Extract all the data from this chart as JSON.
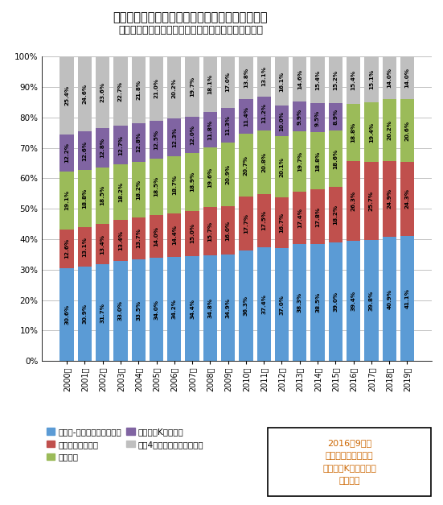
{
  "title_line1": "コンビニ業界全体に占める上位チェーンの売上高",
  "title_line2": "（ローソン統合報告書より、業界全体に占める比率）",
  "years": [
    "2000年",
    "2001年",
    "2002年",
    "2003年",
    "2004年",
    "2005年",
    "2006年",
    "2007年",
    "2008年",
    "2009年",
    "2010年",
    "2011年",
    "2012年",
    "2013年",
    "2014年",
    "2015年",
    "2016年",
    "2017年",
    "2018年",
    "2019年"
  ],
  "seven_eleven": [
    30.6,
    30.9,
    31.7,
    33.0,
    33.5,
    34.0,
    34.2,
    34.4,
    34.8,
    34.9,
    36.3,
    37.4,
    37.0,
    38.3,
    38.5,
    39.0,
    39.4,
    39.8,
    40.9,
    41.1
  ],
  "family_mart": [
    12.6,
    13.1,
    13.4,
    13.4,
    13.7,
    14.0,
    14.4,
    15.0,
    15.7,
    16.0,
    17.7,
    17.5,
    16.7,
    17.4,
    17.8,
    18.2,
    26.3,
    25.7,
    24.9,
    24.3
  ],
  "lawson": [
    19.1,
    18.8,
    18.5,
    18.2,
    18.2,
    18.5,
    18.7,
    18.9,
    19.6,
    20.9,
    20.7,
    20.8,
    20.1,
    19.7,
    18.8,
    18.6,
    18.8,
    19.4,
    20.2,
    20.6
  ],
  "circle_k": [
    12.2,
    12.6,
    12.8,
    12.7,
    12.8,
    12.5,
    12.3,
    12.0,
    11.8,
    11.3,
    11.4,
    11.2,
    10.0,
    9.9,
    9.5,
    8.9,
    0.0,
    0.0,
    0.0,
    0.0
  ],
  "others": [
    25.4,
    24.6,
    23.6,
    22.7,
    21.8,
    21.0,
    20.2,
    19.7,
    18.1,
    17.0,
    13.8,
    13.1,
    16.1,
    14.6,
    15.4,
    15.2,
    15.4,
    15.1,
    14.0,
    14.0
  ],
  "color_seven": "#5b9bd5",
  "color_family": "#c0504d",
  "color_lawson": "#9bbb59",
  "color_circle": "#8064a2",
  "color_others": "#bfbfbf",
  "label_seven": "セブン-イレブン・ジャパン",
  "label_family": "ファミリーマート",
  "label_lawson": "ローソン",
  "label_circle": "サークルKサンクス",
  "label_others": "上位4社以外のコンビニ合計",
  "note_line1": "2016年9月に",
  "note_line2": "ファミリーマートと",
  "note_line3": "サークルKサンクスは",
  "note_line4": "経営統合",
  "note_color": "#cc6600",
  "bg_color": "#ffffff",
  "title1_fontsize": 10.5,
  "title2_fontsize": 9.0,
  "bar_text_fontsize": 5.2,
  "tick_fontsize": 7.0,
  "legend_fontsize": 7.5,
  "note_fontsize": 8.0
}
